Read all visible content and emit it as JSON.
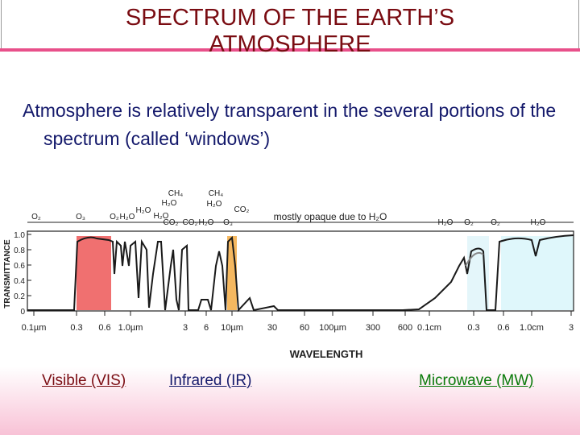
{
  "title": "SPECTRUM OF THE EARTH’S ATMOSPHERE",
  "subtitle": "Atmosphere is relatively transparent in the several portions of the spectrum (called ‘windows’)",
  "figure": {
    "y_axis_label": "TRANSMITTANCE",
    "x_axis_label": "WAVELENGTH",
    "y_ticks": [
      "1.0",
      "0.8",
      "0.6",
      "0.4",
      "0.2",
      "0"
    ],
    "x_ticks": [
      "0.1µm",
      "0.3",
      "0.6",
      "1.0µm",
      "3",
      "6",
      "10µm",
      "30",
      "60",
      "100µm",
      "300",
      "600",
      "0.1cm",
      "0.3",
      "0.6",
      "1.0cm",
      "3"
    ],
    "absorbers": [
      "O₂",
      "O₃",
      "O₂",
      "H₂O",
      "H₂O",
      "H₂O",
      "CO₂",
      "CH₄",
      "H₂O",
      "CO₂",
      "CH₄",
      "H₂O",
      "H₂O",
      "O₃",
      "CO₂",
      "H₂O",
      "O₂",
      "O₂",
      "H₂O"
    ],
    "note": "mostly opaque due to H₂O"
  },
  "bands": [
    "Visible (VIS)",
    "Infrared (IR)",
    "Microwave (MW)"
  ]
}
